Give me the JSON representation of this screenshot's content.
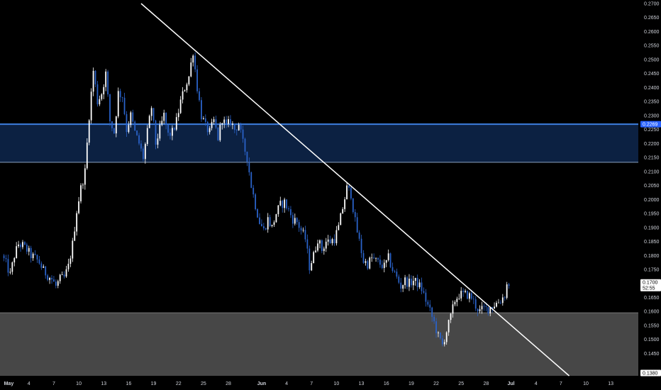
{
  "chart_data": {
    "type": "candlestick",
    "ylim": [
      0.137,
      0.27
    ],
    "y_ticks": [
      "0.2700",
      "0.2650",
      "0.2600",
      "0.2550",
      "0.2500",
      "0.2450",
      "0.2400",
      "0.2350",
      "0.2300",
      "0.2250",
      "0.2200",
      "0.2150",
      "0.2100",
      "0.2050",
      "0.2000",
      "0.1950",
      "0.1900",
      "0.1850",
      "0.1800",
      "0.1750",
      "0.1700",
      "0.1650",
      "0.1600",
      "0.1550",
      "0.1500",
      "0.1450"
    ],
    "x_ticks": [
      {
        "label": "May",
        "day": 0,
        "bold": true
      },
      {
        "label": "4",
        "day": 3
      },
      {
        "label": "7",
        "day": 6
      },
      {
        "label": "10",
        "day": 9
      },
      {
        "label": "13",
        "day": 12
      },
      {
        "label": "16",
        "day": 15
      },
      {
        "label": "19",
        "day": 18
      },
      {
        "label": "22",
        "day": 21
      },
      {
        "label": "25",
        "day": 24
      },
      {
        "label": "28",
        "day": 27
      },
      {
        "label": "Jun",
        "day": 31,
        "bold": true
      },
      {
        "label": "4",
        "day": 34
      },
      {
        "label": "7",
        "day": 37
      },
      {
        "label": "10",
        "day": 40
      },
      {
        "label": "13",
        "day": 43
      },
      {
        "label": "16",
        "day": 46
      },
      {
        "label": "19",
        "day": 49
      },
      {
        "label": "22",
        "day": 52
      },
      {
        "label": "25",
        "day": 55
      },
      {
        "label": "28",
        "day": 58
      },
      {
        "label": "Jul",
        "day": 61,
        "bold": true
      },
      {
        "label": "4",
        "day": 64
      },
      {
        "label": "7",
        "day": 67
      },
      {
        "label": "10",
        "day": 70
      },
      {
        "label": "13",
        "day": 73
      }
    ],
    "price_path": [
      [
        0.0,
        0.18
      ],
      [
        0.5,
        0.177
      ],
      [
        1.0,
        0.173
      ],
      [
        1.5,
        0.18
      ],
      [
        2.0,
        0.184
      ],
      [
        2.5,
        0.1835
      ],
      [
        3.0,
        0.182
      ],
      [
        3.5,
        0.18
      ],
      [
        4.0,
        0.179
      ],
      [
        4.5,
        0.1775
      ],
      [
        5.0,
        0.1745
      ],
      [
        5.5,
        0.173
      ],
      [
        6.0,
        0.1715
      ],
      [
        6.5,
        0.169
      ],
      [
        7.0,
        0.1715
      ],
      [
        7.5,
        0.172
      ],
      [
        8.0,
        0.176
      ],
      [
        8.5,
        0.184
      ],
      [
        9.0,
        0.196
      ],
      [
        9.5,
        0.204
      ],
      [
        10.0,
        0.21
      ],
      [
        10.5,
        0.23
      ],
      [
        11.0,
        0.246
      ],
      [
        11.5,
        0.235
      ],
      [
        12.0,
        0.238
      ],
      [
        12.5,
        0.245
      ],
      [
        13.0,
        0.228
      ],
      [
        13.5,
        0.224
      ],
      [
        14.0,
        0.238
      ],
      [
        14.5,
        0.237
      ],
      [
        15.0,
        0.225
      ],
      [
        15.5,
        0.23
      ],
      [
        16.0,
        0.224
      ],
      [
        16.5,
        0.22
      ],
      [
        17.0,
        0.215
      ],
      [
        17.5,
        0.224
      ],
      [
        18.0,
        0.233
      ],
      [
        18.5,
        0.22
      ],
      [
        19.0,
        0.225
      ],
      [
        19.5,
        0.23
      ],
      [
        20.0,
        0.223
      ],
      [
        20.5,
        0.224
      ],
      [
        21.0,
        0.228
      ],
      [
        21.5,
        0.235
      ],
      [
        22.0,
        0.24
      ],
      [
        22.5,
        0.244
      ],
      [
        23.0,
        0.253
      ],
      [
        23.5,
        0.24
      ],
      [
        24.0,
        0.23
      ],
      [
        24.5,
        0.226
      ],
      [
        25.0,
        0.224
      ],
      [
        25.5,
        0.228
      ],
      [
        26.0,
        0.222
      ],
      [
        26.5,
        0.229
      ],
      [
        27.0,
        0.226
      ],
      [
        27.5,
        0.228
      ],
      [
        28.0,
        0.225
      ],
      [
        28.5,
        0.227
      ],
      [
        29.0,
        0.22
      ],
      [
        29.5,
        0.215
      ],
      [
        30.0,
        0.205
      ],
      [
        30.5,
        0.198
      ],
      [
        31.0,
        0.192
      ],
      [
        31.5,
        0.189
      ],
      [
        32.0,
        0.193
      ],
      [
        32.5,
        0.19
      ],
      [
        33.0,
        0.195
      ],
      [
        33.5,
        0.198
      ],
      [
        34.0,
        0.199
      ],
      [
        34.5,
        0.196
      ],
      [
        35.0,
        0.193
      ],
      [
        35.5,
        0.192
      ],
      [
        36.0,
        0.189
      ],
      [
        36.5,
        0.186
      ],
      [
        37.0,
        0.176
      ],
      [
        37.5,
        0.18
      ],
      [
        38.0,
        0.186
      ],
      [
        38.5,
        0.182
      ],
      [
        39.0,
        0.185
      ],
      [
        39.5,
        0.185
      ],
      [
        40.0,
        0.186
      ],
      [
        40.5,
        0.19
      ],
      [
        41.0,
        0.197
      ],
      [
        41.5,
        0.204
      ],
      [
        42.0,
        0.202
      ],
      [
        42.5,
        0.192
      ],
      [
        43.0,
        0.185
      ],
      [
        43.5,
        0.178
      ],
      [
        44.0,
        0.177
      ],
      [
        44.5,
        0.179
      ],
      [
        45.0,
        0.178
      ],
      [
        45.5,
        0.177
      ],
      [
        46.0,
        0.176
      ],
      [
        46.5,
        0.179
      ],
      [
        47.0,
        0.175
      ],
      [
        47.5,
        0.172
      ],
      [
        48.0,
        0.169
      ],
      [
        48.5,
        0.171
      ],
      [
        49.0,
        0.17
      ],
      [
        49.5,
        0.171
      ],
      [
        50.0,
        0.17
      ],
      [
        50.5,
        0.168
      ],
      [
        51.0,
        0.164
      ],
      [
        51.5,
        0.16
      ],
      [
        52.0,
        0.156
      ],
      [
        52.5,
        0.151
      ],
      [
        53.0,
        0.148
      ],
      [
        53.5,
        0.153
      ],
      [
        54.0,
        0.158
      ],
      [
        54.5,
        0.164
      ],
      [
        55.0,
        0.166
      ],
      [
        55.5,
        0.166
      ],
      [
        56.0,
        0.166
      ],
      [
        56.5,
        0.165
      ],
      [
        57.0,
        0.162
      ],
      [
        57.5,
        0.16
      ],
      [
        58.0,
        0.161
      ],
      [
        58.5,
        0.161
      ],
      [
        59.0,
        0.162
      ],
      [
        59.5,
        0.163
      ],
      [
        60.0,
        0.164
      ],
      [
        60.5,
        0.166
      ],
      [
        60.8,
        0.17
      ]
    ],
    "trendline": [
      {
        "day": 16.5,
        "value": 0.27
      },
      {
        "day": 68.0,
        "value": 0.137
      }
    ],
    "zones": [
      {
        "name": "resistance-zone",
        "top": 0.2269,
        "bottom": 0.2133,
        "fill": "#0c2142",
        "top_line": "#3d7ede",
        "bottom_line": "#8ca3c2"
      },
      {
        "name": "support-zone",
        "top": 0.1595,
        "bottom": 0.137,
        "fill": "#474747",
        "top_line": "#777777"
      }
    ],
    "price_labels": [
      {
        "value": 0.2269,
        "text": "0.2269",
        "bg": "#2962ff",
        "fg": "#ffffff"
      },
      {
        "value": 0.17,
        "text": "0.1700",
        "sub": "52:55",
        "bg": "#ffffff",
        "fg": "#000000"
      },
      {
        "value": 0.138,
        "text": "0.1380",
        "bg": "#ffffff",
        "fg": "#000000"
      }
    ],
    "colors": {
      "background": "#000000",
      "up_candle": "#ffffff",
      "down_candle": "#2a62c8",
      "trendline": "#ffffff",
      "axis_text": "#d1d4dc"
    },
    "grid": false
  }
}
